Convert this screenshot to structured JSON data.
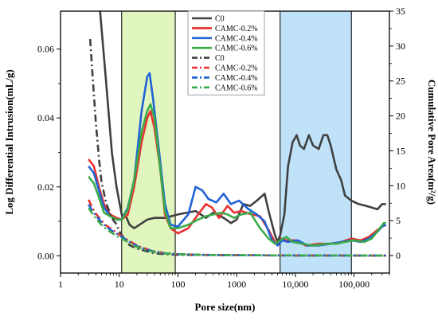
{
  "chart_data": {
    "type": "line",
    "xlabel": "Pore size(nm)",
    "ylabel_left": "Log Differential Intrusion(mL/g)",
    "ylabel_right": "Cumulative Pore Area(m²/g)",
    "x_scale": "log",
    "xlim": [
      1,
      400000
    ],
    "ylim_left": [
      -0.005,
      0.071
    ],
    "ylim_right": [
      -2.5,
      35
    ],
    "x_ticks": [
      1,
      10,
      100,
      1000,
      10000,
      100000
    ],
    "x_tick_labels": [
      "1",
      "10",
      "100",
      "1000",
      "10,000",
      "100,000"
    ],
    "y_left_ticks": [
      0.0,
      0.02,
      0.04,
      0.06
    ],
    "y_left_tick_labels": [
      "0.00",
      "0.02",
      "0.04",
      "0.06"
    ],
    "y_right_ticks": [
      0,
      5,
      10,
      15,
      20,
      25,
      30,
      35
    ],
    "y_right_tick_labels": [
      "0",
      "5",
      "10",
      "15",
      "20",
      "25",
      "30",
      "35"
    ],
    "shaded_regions": [
      {
        "x0": 11,
        "x1": 90,
        "color": "#e1f5be"
      },
      {
        "x0": 5500,
        "x1": 90000,
        "color": "#bfe2f8"
      }
    ],
    "legend_position": "top-center",
    "colors": {
      "C0": "#404040",
      "CAMC-0.2%": "#e8312f",
      "CAMC-0.4%": "#1f63d6",
      "CAMC-0.6%": "#3bab4a"
    },
    "series": [
      {
        "name": "C0",
        "axis": "left",
        "style": "solid",
        "color": "#404040",
        "points": [
          [
            4.5,
            0.075
          ],
          [
            6,
            0.05
          ],
          [
            7.5,
            0.03
          ],
          [
            9,
            0.02
          ],
          [
            11,
            0.012
          ],
          [
            13,
            0.0115
          ],
          [
            15,
            0.009
          ],
          [
            18,
            0.008
          ],
          [
            22,
            0.009
          ],
          [
            30,
            0.0105
          ],
          [
            40,
            0.011
          ],
          [
            60,
            0.011
          ],
          [
            100,
            0.012
          ],
          [
            200,
            0.013
          ],
          [
            300,
            0.011
          ],
          [
            400,
            0.0125
          ],
          [
            600,
            0.011
          ],
          [
            800,
            0.0095
          ],
          [
            1000,
            0.0105
          ],
          [
            1300,
            0.015
          ],
          [
            1700,
            0.0145
          ],
          [
            2200,
            0.016
          ],
          [
            3000,
            0.018
          ],
          [
            3500,
            0.013
          ],
          [
            4500,
            0.006
          ],
          [
            5000,
            0.004
          ],
          [
            5500,
            0.006
          ],
          [
            6500,
            0.012
          ],
          [
            7500,
            0.026
          ],
          [
            9000,
            0.033
          ],
          [
            10500,
            0.035
          ],
          [
            12000,
            0.032
          ],
          [
            14000,
            0.031
          ],
          [
            17000,
            0.035
          ],
          [
            20000,
            0.032
          ],
          [
            25000,
            0.031
          ],
          [
            30000,
            0.035
          ],
          [
            35000,
            0.035
          ],
          [
            40000,
            0.032
          ],
          [
            50000,
            0.025
          ],
          [
            60000,
            0.022
          ],
          [
            70000,
            0.0175
          ],
          [
            90000,
            0.016
          ],
          [
            120000,
            0.015
          ],
          [
            160000,
            0.0145
          ],
          [
            200000,
            0.014
          ],
          [
            250000,
            0.0135
          ],
          [
            300000,
            0.015
          ],
          [
            350000,
            0.015
          ]
        ]
      },
      {
        "name": "CAMC-0.2%",
        "axis": "left",
        "style": "solid",
        "color": "#e8312f",
        "points": [
          [
            3,
            0.028
          ],
          [
            3.7,
            0.026
          ],
          [
            4.5,
            0.02
          ],
          [
            5.5,
            0.015
          ],
          [
            7,
            0.012
          ],
          [
            9,
            0.011
          ],
          [
            11,
            0.0105
          ],
          [
            14,
            0.012
          ],
          [
            18,
            0.02
          ],
          [
            24,
            0.033
          ],
          [
            30,
            0.04
          ],
          [
            34,
            0.042
          ],
          [
            40,
            0.037
          ],
          [
            50,
            0.025
          ],
          [
            60,
            0.012
          ],
          [
            75,
            0.008
          ],
          [
            100,
            0.0065
          ],
          [
            150,
            0.008
          ],
          [
            220,
            0.012
          ],
          [
            300,
            0.015
          ],
          [
            380,
            0.014
          ],
          [
            500,
            0.011
          ],
          [
            700,
            0.0145
          ],
          [
            900,
            0.0125
          ],
          [
            1200,
            0.013
          ],
          [
            1800,
            0.012
          ],
          [
            2500,
            0.0115
          ],
          [
            3500,
            0.0075
          ],
          [
            4500,
            0.004
          ],
          [
            5000,
            0.0035
          ],
          [
            5800,
            0.005
          ],
          [
            7000,
            0.0045
          ],
          [
            10000,
            0.0045
          ],
          [
            15000,
            0.003
          ],
          [
            25000,
            0.0035
          ],
          [
            40000,
            0.0035
          ],
          [
            60000,
            0.004
          ],
          [
            90000,
            0.005
          ],
          [
            130000,
            0.0045
          ],
          [
            180000,
            0.0055
          ],
          [
            250000,
            0.0075
          ],
          [
            300000,
            0.0085
          ],
          [
            350000,
            0.009
          ]
        ]
      },
      {
        "name": "CAMC-0.4%",
        "axis": "left",
        "style": "solid",
        "color": "#1f63d6",
        "points": [
          [
            3,
            0.026
          ],
          [
            3.7,
            0.024
          ],
          [
            4.5,
            0.019
          ],
          [
            5.5,
            0.014
          ],
          [
            7,
            0.0115
          ],
          [
            9,
            0.0105
          ],
          [
            11,
            0.0105
          ],
          [
            14,
            0.014
          ],
          [
            18,
            0.022
          ],
          [
            24,
            0.042
          ],
          [
            30,
            0.052
          ],
          [
            33,
            0.053
          ],
          [
            38,
            0.045
          ],
          [
            48,
            0.03
          ],
          [
            60,
            0.015
          ],
          [
            75,
            0.009
          ],
          [
            100,
            0.0085
          ],
          [
            150,
            0.012
          ],
          [
            200,
            0.02
          ],
          [
            260,
            0.019
          ],
          [
            330,
            0.0165
          ],
          [
            450,
            0.0155
          ],
          [
            600,
            0.018
          ],
          [
            800,
            0.015
          ],
          [
            1100,
            0.016
          ],
          [
            1600,
            0.0135
          ],
          [
            2200,
            0.012
          ],
          [
            3000,
            0.01
          ],
          [
            4000,
            0.0045
          ],
          [
            5000,
            0.003
          ],
          [
            6000,
            0.0045
          ],
          [
            7500,
            0.004
          ],
          [
            11000,
            0.0045
          ],
          [
            16000,
            0.003
          ],
          [
            25000,
            0.003
          ],
          [
            40000,
            0.0035
          ],
          [
            60000,
            0.004
          ],
          [
            90000,
            0.0045
          ],
          [
            130000,
            0.004
          ],
          [
            180000,
            0.005
          ],
          [
            250000,
            0.007
          ],
          [
            300000,
            0.0085
          ],
          [
            350000,
            0.009
          ]
        ]
      },
      {
        "name": "CAMC-0.6%",
        "axis": "left",
        "style": "solid",
        "color": "#3bab4a",
        "points": [
          [
            3,
            0.023
          ],
          [
            3.7,
            0.021
          ],
          [
            4.5,
            0.017
          ],
          [
            5.5,
            0.0125
          ],
          [
            7,
            0.0115
          ],
          [
            9,
            0.0105
          ],
          [
            11,
            0.0105
          ],
          [
            14,
            0.0135
          ],
          [
            18,
            0.022
          ],
          [
            24,
            0.036
          ],
          [
            30,
            0.042
          ],
          [
            34,
            0.044
          ],
          [
            40,
            0.04
          ],
          [
            50,
            0.025
          ],
          [
            60,
            0.013
          ],
          [
            75,
            0.008
          ],
          [
            100,
            0.008
          ],
          [
            150,
            0.009
          ],
          [
            220,
            0.0105
          ],
          [
            300,
            0.0115
          ],
          [
            400,
            0.012
          ],
          [
            550,
            0.0125
          ],
          [
            700,
            0.012
          ],
          [
            900,
            0.011
          ],
          [
            1200,
            0.012
          ],
          [
            1700,
            0.0125
          ],
          [
            2500,
            0.008
          ],
          [
            3500,
            0.005
          ],
          [
            4500,
            0.0035
          ],
          [
            5500,
            0.0045
          ],
          [
            7000,
            0.0055
          ],
          [
            9000,
            0.004
          ],
          [
            13000,
            0.0035
          ],
          [
            20000,
            0.003
          ],
          [
            35000,
            0.0035
          ],
          [
            50000,
            0.0035
          ],
          [
            70000,
            0.004
          ],
          [
            100000,
            0.0045
          ],
          [
            150000,
            0.004
          ],
          [
            200000,
            0.005
          ],
          [
            260000,
            0.0075
          ],
          [
            320000,
            0.0095
          ],
          [
            350000,
            0.0095
          ]
        ]
      },
      {
        "name": "C0",
        "axis": "right",
        "style": "dashdot",
        "color": "#404040",
        "points": [
          [
            3.2,
            31
          ],
          [
            3.5,
            26
          ],
          [
            4,
            19
          ],
          [
            4.5,
            14
          ],
          [
            5,
            10.5
          ],
          [
            6,
            7.5
          ],
          [
            7,
            6
          ],
          [
            8,
            5
          ],
          [
            9,
            4.5
          ],
          [
            10,
            3.5
          ],
          [
            12,
            2.5
          ],
          [
            15,
            1.5
          ],
          [
            20,
            1.0
          ],
          [
            30,
            0.6
          ],
          [
            40,
            0.3
          ],
          [
            60,
            0.2
          ],
          [
            100,
            0.1
          ],
          [
            1000,
            0.05
          ],
          [
            10000,
            0.02
          ],
          [
            350000,
            0
          ]
        ]
      },
      {
        "name": "CAMC-0.2%",
        "axis": "right",
        "style": "dashdot",
        "color": "#e8312f",
        "points": [
          [
            3,
            8
          ],
          [
            3.5,
            6.8
          ],
          [
            4,
            6
          ],
          [
            5,
            5
          ],
          [
            6,
            4.3
          ],
          [
            8,
            3.6
          ],
          [
            10,
            3.0
          ],
          [
            13,
            2.4
          ],
          [
            17,
            1.8
          ],
          [
            22,
            1.3
          ],
          [
            30,
            0.9
          ],
          [
            40,
            0.6
          ],
          [
            60,
            0.35
          ],
          [
            100,
            0.2
          ],
          [
            300,
            0.1
          ],
          [
            1000,
            0.05
          ],
          [
            10000,
            0.02
          ],
          [
            350000,
            0
          ]
        ]
      },
      {
        "name": "CAMC-0.4%",
        "axis": "right",
        "style": "dashdot",
        "color": "#1f63d6",
        "points": [
          [
            3,
            7.3
          ],
          [
            3.5,
            6.4
          ],
          [
            4,
            5.7
          ],
          [
            5,
            4.8
          ],
          [
            6,
            4.1
          ],
          [
            8,
            3.4
          ],
          [
            10,
            2.9
          ],
          [
            13,
            2.3
          ],
          [
            17,
            1.7
          ],
          [
            22,
            1.2
          ],
          [
            30,
            0.85
          ],
          [
            40,
            0.55
          ],
          [
            60,
            0.3
          ],
          [
            100,
            0.2
          ],
          [
            300,
            0.1
          ],
          [
            1000,
            0.05
          ],
          [
            10000,
            0.02
          ],
          [
            350000,
            0
          ]
        ]
      },
      {
        "name": "CAMC-0.6%",
        "axis": "right",
        "style": "dashdot",
        "color": "#3bab4a",
        "points": [
          [
            3,
            6.8
          ],
          [
            3.5,
            6
          ],
          [
            4,
            5.3
          ],
          [
            5,
            4.4
          ],
          [
            6,
            3.8
          ],
          [
            8,
            3.1
          ],
          [
            10,
            2.6
          ],
          [
            13,
            2.1
          ],
          [
            17,
            1.5
          ],
          [
            22,
            1.1
          ],
          [
            30,
            0.75
          ],
          [
            40,
            0.5
          ],
          [
            60,
            0.3
          ],
          [
            100,
            0.2
          ],
          [
            300,
            0.1
          ],
          [
            1000,
            0.05
          ],
          [
            10000,
            0.02
          ],
          [
            350000,
            0
          ]
        ]
      }
    ]
  }
}
